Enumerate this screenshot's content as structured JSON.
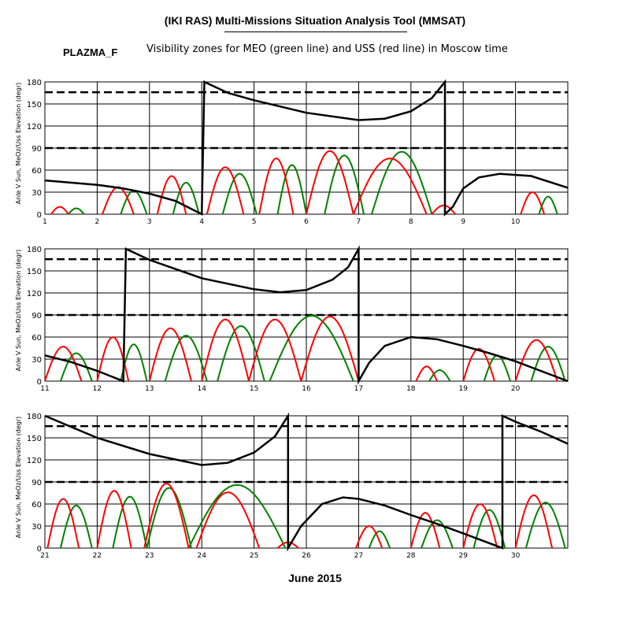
{
  "header": {
    "title": "(IKI RAS) Multi-Missions Situation Analysis Tool (MMSAT)",
    "tag": "PLAZMA_F",
    "subtitle": "Visibility zones for MEO (green line) and USS (red line) in Moscow time"
  },
  "footer": {
    "xlabel": "June 2015"
  },
  "colors": {
    "sun_angle": "#000000",
    "meo": "#008000",
    "uss": "#ff0000",
    "grid": "#000000"
  },
  "chart_data": [
    {
      "type": "line",
      "ylabel": "Anle V Sun, MeOz/Uss Elevation (degr)",
      "xlim": [
        1,
        11
      ],
      "ylim": [
        0,
        180
      ],
      "xticks": [
        "1",
        "2",
        "3",
        "4",
        "5",
        "6",
        "7",
        "8",
        "9",
        "10"
      ],
      "yticks": [
        "0",
        "30",
        "60",
        "90",
        "120",
        "150",
        "180"
      ],
      "reference_lines": [
        {
          "y": 166,
          "style": "dashed"
        },
        {
          "y": 90,
          "style": "dashed"
        }
      ],
      "sun_angle": [
        [
          1.0,
          46
        ],
        [
          2.0,
          40
        ],
        [
          2.5,
          35
        ],
        [
          3.0,
          28
        ],
        [
          3.5,
          18
        ],
        [
          4.0,
          0
        ],
        [
          4.05,
          180
        ],
        [
          4.5,
          165
        ],
        [
          5.0,
          155
        ],
        [
          6.0,
          138
        ],
        [
          7.0,
          128
        ],
        [
          7.5,
          130
        ],
        [
          8.0,
          140
        ],
        [
          8.4,
          158
        ],
        [
          8.65,
          180
        ],
        [
          8.65,
          0
        ],
        [
          8.8,
          10
        ],
        [
          9.0,
          35
        ],
        [
          9.3,
          50
        ],
        [
          9.7,
          55
        ],
        [
          10.3,
          52
        ],
        [
          11.0,
          36
        ]
      ],
      "meo_passes": [
        {
          "start": 1.45,
          "end": 1.75,
          "peak": 8
        },
        {
          "start": 2.45,
          "end": 2.95,
          "peak": 32
        },
        {
          "start": 3.45,
          "end": 3.95,
          "peak": 43
        },
        {
          "start": 4.4,
          "end": 5.05,
          "peak": 55
        },
        {
          "start": 5.45,
          "end": 6.0,
          "peak": 67
        },
        {
          "start": 6.35,
          "end": 7.1,
          "peak": 80
        },
        {
          "start": 7.25,
          "end": 8.4,
          "peak": 85
        },
        {
          "start": 10.45,
          "end": 10.8,
          "peak": 24
        }
      ],
      "uss_passes": [
        {
          "start": 1.12,
          "end": 1.45,
          "peak": 10
        },
        {
          "start": 2.1,
          "end": 2.7,
          "peak": 37
        },
        {
          "start": 3.15,
          "end": 3.7,
          "peak": 52
        },
        {
          "start": 4.1,
          "end": 4.8,
          "peak": 64
        },
        {
          "start": 5.1,
          "end": 5.75,
          "peak": 76
        },
        {
          "start": 6.0,
          "end": 6.9,
          "peak": 86
        },
        {
          "start": 6.9,
          "end": 8.3,
          "peak": 76
        },
        {
          "start": 8.4,
          "end": 8.85,
          "peak": 12
        },
        {
          "start": 10.1,
          "end": 10.55,
          "peak": 30
        }
      ]
    },
    {
      "type": "line",
      "ylabel": "Anle V Sun, MeOz/Uss Elevation (degr)",
      "xlim": [
        11,
        21
      ],
      "ylim": [
        0,
        180
      ],
      "xticks": [
        "11",
        "12",
        "13",
        "14",
        "15",
        "16",
        "17",
        "18",
        "19",
        "20"
      ],
      "yticks": [
        "0",
        "30",
        "60",
        "90",
        "120",
        "150",
        "180"
      ],
      "reference_lines": [
        {
          "y": 166,
          "style": "dashed"
        },
        {
          "y": 90,
          "style": "dashed"
        }
      ],
      "sun_angle": [
        [
          11.0,
          35
        ],
        [
          11.5,
          26
        ],
        [
          12.0,
          14
        ],
        [
          12.5,
          0
        ],
        [
          12.55,
          180
        ],
        [
          13.0,
          165
        ],
        [
          14.0,
          140
        ],
        [
          15.0,
          125
        ],
        [
          15.5,
          121
        ],
        [
          16.0,
          124
        ],
        [
          16.5,
          138
        ],
        [
          16.8,
          155
        ],
        [
          17.0,
          180
        ],
        [
          17.0,
          0
        ],
        [
          17.2,
          25
        ],
        [
          17.5,
          48
        ],
        [
          18.0,
          60
        ],
        [
          18.5,
          57
        ],
        [
          19.0,
          48
        ],
        [
          19.5,
          38
        ],
        [
          20.0,
          27
        ],
        [
          21.0,
          0
        ]
      ],
      "meo_passes": [
        {
          "start": 11.3,
          "end": 11.9,
          "peak": 38
        },
        {
          "start": 12.45,
          "end": 12.95,
          "peak": 50
        },
        {
          "start": 13.3,
          "end": 14.1,
          "peak": 62
        },
        {
          "start": 14.3,
          "end": 15.2,
          "peak": 75
        },
        {
          "start": 15.3,
          "end": 16.9,
          "peak": 89
        },
        {
          "start": 18.35,
          "end": 18.75,
          "peak": 15
        },
        {
          "start": 19.4,
          "end": 19.9,
          "peak": 35
        },
        {
          "start": 20.3,
          "end": 20.95,
          "peak": 47
        }
      ],
      "uss_passes": [
        {
          "start": 11.0,
          "end": 11.7,
          "peak": 47
        },
        {
          "start": 12.0,
          "end": 12.6,
          "peak": 60
        },
        {
          "start": 13.0,
          "end": 13.8,
          "peak": 72
        },
        {
          "start": 14.0,
          "end": 14.9,
          "peak": 84
        },
        {
          "start": 14.9,
          "end": 15.9,
          "peak": 84
        },
        {
          "start": 15.9,
          "end": 17.0,
          "peak": 88
        },
        {
          "start": 18.1,
          "end": 18.5,
          "peak": 20
        },
        {
          "start": 19.0,
          "end": 19.6,
          "peak": 44
        },
        {
          "start": 20.0,
          "end": 20.8,
          "peak": 56
        }
      ]
    },
    {
      "type": "line",
      "ylabel": "Anle V Sun, MeOz/Uss Elevation (degr)",
      "xlim": [
        21,
        31
      ],
      "ylim": [
        0,
        180
      ],
      "xticks": [
        "21",
        "22",
        "23",
        "24",
        "25",
        "26",
        "27",
        "28",
        "29",
        "30"
      ],
      "yticks": [
        "0",
        "30",
        "60",
        "90",
        "120",
        "150",
        "180"
      ],
      "reference_lines": [
        {
          "y": 166,
          "style": "dashed"
        },
        {
          "y": 90,
          "style": "dashed"
        }
      ],
      "sun_angle": [
        [
          21.0,
          180
        ],
        [
          21.5,
          165
        ],
        [
          22.0,
          150
        ],
        [
          23.0,
          128
        ],
        [
          24.0,
          113
        ],
        [
          24.5,
          116
        ],
        [
          25.0,
          130
        ],
        [
          25.4,
          152
        ],
        [
          25.65,
          180
        ],
        [
          25.65,
          0
        ],
        [
          25.9,
          30
        ],
        [
          26.3,
          60
        ],
        [
          26.7,
          69
        ],
        [
          27.0,
          67
        ],
        [
          27.5,
          58
        ],
        [
          28.0,
          45
        ],
        [
          28.5,
          33
        ],
        [
          29.0,
          20
        ],
        [
          29.75,
          0
        ],
        [
          29.75,
          180
        ],
        [
          30.0,
          172
        ],
        [
          30.5,
          158
        ],
        [
          31.0,
          142
        ]
      ],
      "meo_passes": [
        {
          "start": 21.3,
          "end": 21.9,
          "peak": 58
        },
        {
          "start": 22.3,
          "end": 22.95,
          "peak": 70
        },
        {
          "start": 22.95,
          "end": 23.8,
          "peak": 82
        },
        {
          "start": 23.75,
          "end": 25.6,
          "peak": 86
        },
        {
          "start": 27.2,
          "end": 27.6,
          "peak": 23
        },
        {
          "start": 28.2,
          "end": 28.8,
          "peak": 38
        },
        {
          "start": 29.2,
          "end": 29.8,
          "peak": 52
        },
        {
          "start": 30.2,
          "end": 30.95,
          "peak": 62
        }
      ],
      "uss_passes": [
        {
          "start": 21.05,
          "end": 21.65,
          "peak": 67
        },
        {
          "start": 22.0,
          "end": 22.65,
          "peak": 78
        },
        {
          "start": 22.9,
          "end": 23.75,
          "peak": 88
        },
        {
          "start": 23.9,
          "end": 25.1,
          "peak": 76
        },
        {
          "start": 25.45,
          "end": 25.85,
          "peak": 8
        },
        {
          "start": 26.95,
          "end": 27.45,
          "peak": 30
        },
        {
          "start": 28.0,
          "end": 28.55,
          "peak": 48
        },
        {
          "start": 29.0,
          "end": 29.65,
          "peak": 60
        },
        {
          "start": 30.0,
          "end": 30.7,
          "peak": 72
        }
      ]
    }
  ]
}
